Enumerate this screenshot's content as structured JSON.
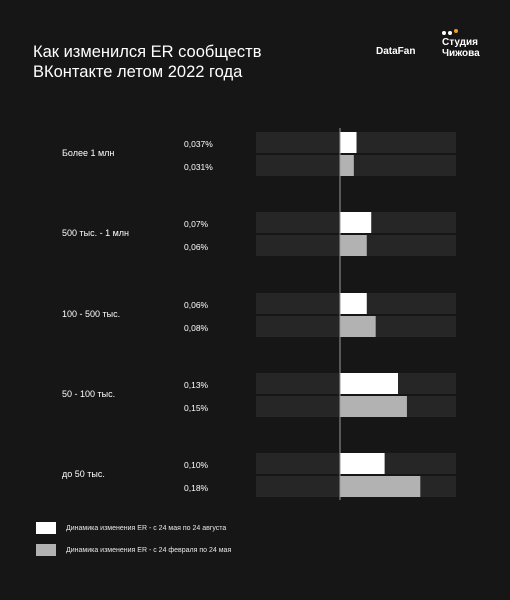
{
  "header": {
    "title_line1": "Как изменился ER сообществ",
    "title_line2": "ВКонтакте летом 2022 года",
    "brand_datafan": "DataFan",
    "brand_studio_line1": "Студия",
    "brand_studio_line2": "Чижова",
    "studio_dot_colors": [
      "#ffffff",
      "#ffffff",
      "#f29a2e"
    ]
  },
  "chart_data": {
    "type": "bar",
    "orientation": "horizontal",
    "categories": [
      "Более 1 млн",
      "500 тыс. - 1 млн",
      "100 - 500 тыс.",
      "50 - 100 тыс.",
      "до 50 тыс."
    ],
    "series": [
      {
        "name": "Динамика изменения ER - с 24 мая по 24 августа",
        "color": "#ffffff",
        "values": [
          0.037,
          0.07,
          0.06,
          0.13,
          0.1
        ],
        "labels": [
          "0,037%",
          "0,07%",
          "0,06%",
          "0,13%",
          "0,10%"
        ]
      },
      {
        "name": "Динамика изменения ER - с 24 февраля по 24 мая",
        "color": "#b2b2b2",
        "values": [
          0.031,
          0.06,
          0.08,
          0.15,
          0.18
        ],
        "labels": [
          "0,031%",
          "0,06%",
          "0,08%",
          "0,15%",
          "0,18%"
        ]
      }
    ],
    "unit": "%",
    "xlim": [
      0,
      0.26
    ],
    "track_color": "#262626",
    "axis_color": "#9a9a9a"
  },
  "legend": {
    "items": [
      {
        "label": "Динамика изменения ER - с 24 мая по 24 августа",
        "color": "#ffffff"
      },
      {
        "label": "Динамика изменения ER - с 24 февраля по 24 мая",
        "color": "#b2b2b2"
      }
    ]
  }
}
